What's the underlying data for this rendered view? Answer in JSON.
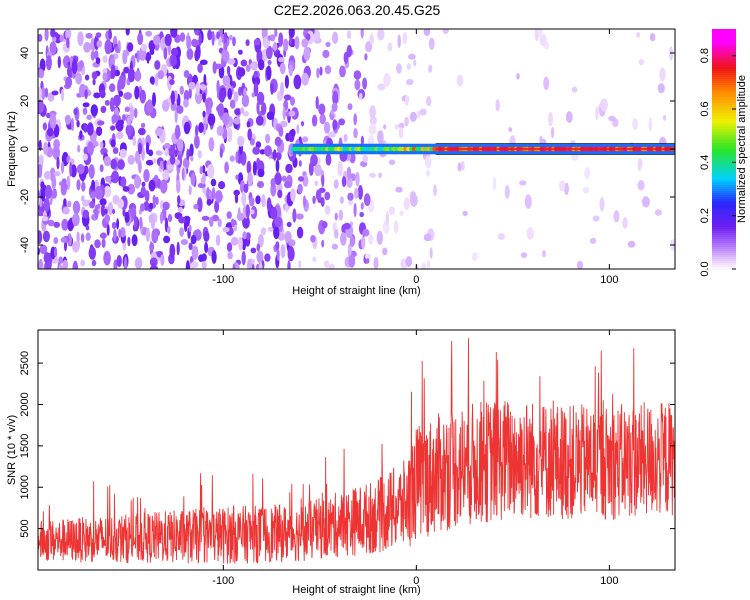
{
  "page": {
    "title": "C2E2.2026.063.20.45.G25"
  },
  "chart_data": [
    {
      "type": "heatmap",
      "title": "C2E2.2026.063.20.45.G25",
      "xlabel": "Height of straight line (km)",
      "ylabel": "Frequency (Hz)",
      "xlim": [
        -196,
        134
      ],
      "ylim": [
        -50,
        50
      ],
      "x_ticks": [
        -100,
        0,
        100
      ],
      "x_tick_labels": [
        "-100",
        "0",
        "100"
      ],
      "y_ticks": [
        -40,
        -20,
        0,
        20,
        40
      ],
      "y_tick_labels": [
        "-40",
        "-20",
        "0",
        "20",
        "40"
      ],
      "colorbar": {
        "label": "Normalized spectral amplitude",
        "range": [
          0,
          0.9
        ],
        "ticks": [
          0.0,
          0.2,
          0.4,
          0.6,
          0.8
        ],
        "tick_labels": [
          "0.0",
          "0.2",
          "0.4",
          "0.6",
          "0.8"
        ],
        "colormap": "rainbow (white-purple-blue-cyan-green-yellow-red-magenta)"
      },
      "features": [
        {
          "kind": "noise",
          "x_range": [
            -196,
            -30
          ],
          "amplitude": "0.1-0.2"
        },
        {
          "kind": "noise",
          "x_range": [
            -30,
            134
          ],
          "amplitude": "0.0-0.05"
        },
        {
          "kind": "tone",
          "frequency": 0,
          "x_range": [
            -65,
            134
          ],
          "amplitude": "0.3-0.9"
        }
      ],
      "grid": false
    },
    {
      "type": "line",
      "xlabel": "Height of straight line (km)",
      "ylabel": "SNR (10 * v/v)",
      "xlim": [
        -196,
        134
      ],
      "ylim": [
        0,
        2900
      ],
      "x_ticks": [
        -100,
        0,
        100
      ],
      "x_tick_labels": [
        "-100",
        "0",
        "100"
      ],
      "y_ticks": [
        500,
        1000,
        1500,
        2000,
        2500
      ],
      "y_tick_labels": [
        "500",
        "1000",
        "1500",
        "2000",
        "2500"
      ],
      "color": "#ee3333",
      "envelope": {
        "x": [
          -196,
          -150,
          -100,
          -60,
          -40,
          -20,
          -5,
          0,
          20,
          50,
          80,
          100,
          134
        ],
        "mean": [
          350,
          380,
          420,
          450,
          550,
          650,
          800,
          1050,
          1250,
          1350,
          1300,
          1300,
          1350
        ],
        "spread": [
          250,
          300,
          350,
          350,
          400,
          450,
          550,
          700,
          750,
          750,
          700,
          700,
          700
        ]
      },
      "grid": false
    }
  ]
}
